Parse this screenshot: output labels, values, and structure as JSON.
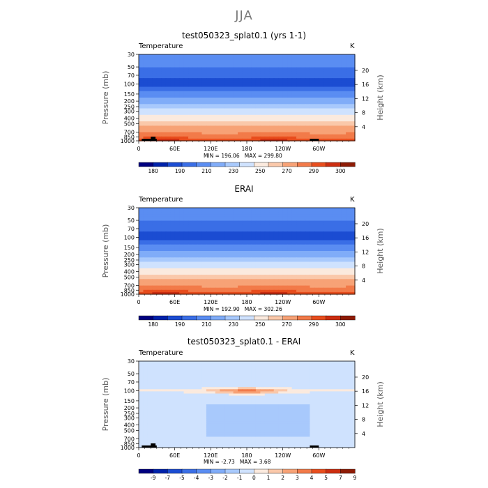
{
  "page_title": "JJA",
  "colors": {
    "temp_levels": [
      "#00007f",
      "#0022aa",
      "#1b4cd2",
      "#3a6ee6",
      "#5a8df2",
      "#80acf8",
      "#a8c9fc",
      "#cfe2fe",
      "#fbeade",
      "#fac8aa",
      "#f7a276",
      "#f27a49",
      "#e84d1d",
      "#cc2d10",
      "#8e1b05"
    ],
    "diff_levels": [
      "#00007f",
      "#0022aa",
      "#1b4cd2",
      "#3a6ee6",
      "#5a8df2",
      "#80acf8",
      "#a8c9fc",
      "#cfe2fe",
      "#fbeade",
      "#fac8aa",
      "#f7a276",
      "#f27a49",
      "#e84d1d",
      "#cc2d10",
      "#8e1b05"
    ],
    "land": "#000000"
  },
  "panels": [
    {
      "title": "test050323_splat0.1 (yrs 1-1)",
      "variable": "Temperature",
      "units": "K",
      "stats": "MIN = 196.06   MAX = 299.80",
      "colorbar_labels": [
        "180",
        "190",
        "210",
        "230",
        "250",
        "270",
        "290",
        "300"
      ]
    },
    {
      "title": "ERAI",
      "variable": "Temperature",
      "units": "K",
      "stats": "MIN = 192.90   MAX = 302.26",
      "colorbar_labels": [
        "180",
        "190",
        "210",
        "230",
        "250",
        "270",
        "290",
        "300"
      ]
    },
    {
      "title": "test050323_splat0.1 - ERAI",
      "variable": "Temperature",
      "units": "K",
      "stats": "MIN = -2.73   MAX = 3.68",
      "colorbar_labels": [
        "-9",
        "-7",
        "-5",
        "-4",
        "-3",
        "-2",
        "-1",
        "0",
        "1",
        "2",
        "3",
        "4",
        "5",
        "7",
        "9"
      ]
    }
  ],
  "chart_data": [
    {
      "type": "heatmap",
      "title": "test050323_splat0.1 (yrs 1-1)",
      "variable": "Temperature",
      "units": "K",
      "xlabel": "",
      "ylabel": "Pressure (mb)",
      "ylabel_right": "Height (km)",
      "x_ticks": [
        "0",
        "60E",
        "120E",
        "180",
        "120W",
        "60W"
      ],
      "x_tick_lon": [
        0,
        60,
        120,
        180,
        240,
        300
      ],
      "x_range": [
        0,
        360
      ],
      "y_ticks": [
        "30",
        "50",
        "70",
        "100",
        "150",
        "200",
        "250",
        "300",
        "400",
        "500",
        "700",
        "850",
        "1000"
      ],
      "y_tick_p": [
        30,
        50,
        70,
        100,
        150,
        200,
        250,
        300,
        400,
        500,
        700,
        850,
        1000
      ],
      "y_range": [
        30,
        1000
      ],
      "y_scale": "log",
      "right_ticks": [
        "20",
        "16",
        "12",
        "8",
        "4"
      ],
      "right_tick_km": [
        20,
        16,
        12,
        8,
        4
      ],
      "min": 196.06,
      "max": 299.8,
      "levels": [
        180,
        190,
        200,
        210,
        220,
        230,
        240,
        250,
        260,
        270,
        280,
        290,
        295,
        300
      ]
    },
    {
      "type": "heatmap",
      "title": "ERAI",
      "variable": "Temperature",
      "units": "K",
      "xlabel": "",
      "ylabel": "Pressure (mb)",
      "ylabel_right": "Height (km)",
      "x_ticks": [
        "0",
        "60E",
        "120E",
        "180",
        "120W",
        "60W"
      ],
      "x_tick_lon": [
        0,
        60,
        120,
        180,
        240,
        300
      ],
      "x_range": [
        0,
        360
      ],
      "y_ticks": [
        "30",
        "50",
        "70",
        "100",
        "150",
        "200",
        "250",
        "300",
        "400",
        "500",
        "700",
        "850",
        "1000"
      ],
      "y_tick_p": [
        30,
        50,
        70,
        100,
        150,
        200,
        250,
        300,
        400,
        500,
        700,
        850,
        1000
      ],
      "y_range": [
        30,
        1000
      ],
      "y_scale": "log",
      "right_ticks": [
        "20",
        "16",
        "12",
        "8",
        "4"
      ],
      "right_tick_km": [
        20,
        16,
        12,
        8,
        4
      ],
      "min": 192.9,
      "max": 302.26,
      "levels": [
        180,
        190,
        200,
        210,
        220,
        230,
        240,
        250,
        260,
        270,
        280,
        290,
        295,
        300
      ]
    },
    {
      "type": "heatmap",
      "title": "test050323_splat0.1 - ERAI",
      "variable": "Temperature",
      "units": "K",
      "xlabel": "",
      "ylabel": "Pressure (mb)",
      "ylabel_right": "Height (km)",
      "x_ticks": [
        "0",
        "60E",
        "120E",
        "180",
        "120W",
        "60W"
      ],
      "x_tick_lon": [
        0,
        60,
        120,
        180,
        240,
        300
      ],
      "x_range": [
        0,
        360
      ],
      "y_ticks": [
        "30",
        "50",
        "70",
        "100",
        "150",
        "200",
        "250",
        "300",
        "400",
        "500",
        "700",
        "850",
        "1000"
      ],
      "y_tick_p": [
        30,
        50,
        70,
        100,
        150,
        200,
        250,
        300,
        400,
        500,
        700,
        850,
        1000
      ],
      "y_range": [
        30,
        1000
      ],
      "y_scale": "log",
      "right_ticks": [
        "20",
        "16",
        "12",
        "8",
        "4"
      ],
      "right_tick_km": [
        20,
        16,
        12,
        8,
        4
      ],
      "min": -2.73,
      "max": 3.68,
      "levels": [
        -9,
        -7,
        -5,
        -4,
        -3,
        -2,
        -1,
        0,
        1,
        2,
        3,
        4,
        5,
        7,
        9
      ]
    }
  ]
}
